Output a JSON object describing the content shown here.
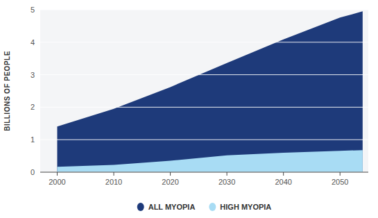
{
  "chart_data": {
    "type": "area",
    "x": [
      2000,
      2010,
      2020,
      2030,
      2040,
      2050,
      2054
    ],
    "series": [
      {
        "name": "ALL MYOPIA",
        "color": "#1e3a7a",
        "values": [
          1.406,
          1.95,
          2.62,
          3.361,
          4.088,
          4.758,
          4.95
        ]
      },
      {
        "name": "HIGH MYOPIA",
        "color": "#a8dcf4",
        "values": [
          0.163,
          0.224,
          0.352,
          0.517,
          0.6,
          0.656,
          0.68
        ]
      }
    ],
    "xlim": [
      1997,
      2055
    ],
    "xticks": [
      2000,
      2010,
      2020,
      2030,
      2040,
      2050
    ],
    "ylim": [
      0,
      5
    ],
    "yticks": [
      0,
      1,
      2,
      3,
      4,
      5
    ],
    "y_label": "BILLIONS OF PEOPLE",
    "grid": true,
    "legend": "bottom"
  }
}
